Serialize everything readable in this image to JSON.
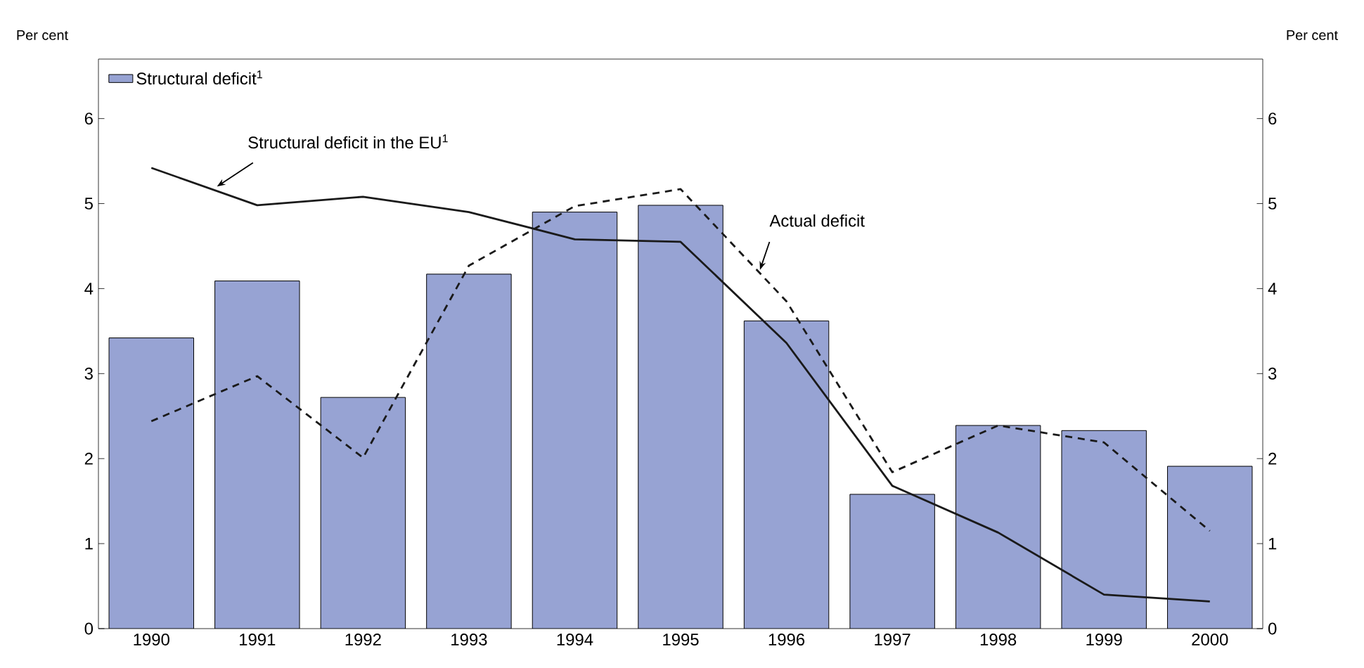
{
  "chart_data": {
    "type": "bar",
    "ylabel": "Per cent",
    "y2label": "Per cent",
    "categories": [
      "1990",
      "1991",
      "1992",
      "1993",
      "1994",
      "1995",
      "1996",
      "1997",
      "1998",
      "1999",
      "2000"
    ],
    "series": [
      {
        "name": "Structural deficit$^{1}$",
        "color": "#97a3d3",
        "values": [
          3.42,
          4.09,
          2.72,
          4.17,
          4.9,
          4.98,
          3.62,
          1.58,
          2.39,
          2.33,
          1.91
        ]
      },
      {
        "name": "Structural deficit in the EU$^{1}$",
        "type": "line",
        "color": "#1a1a1a",
        "line_style": "solid",
        "values": [
          5.42,
          4.98,
          5.08,
          4.9,
          4.58,
          4.55,
          3.36,
          1.68,
          1.13,
          0.4,
          0.32
        ]
      },
      {
        "name": "Actual deficit",
        "type": "line",
        "color": "#1a1a1a",
        "line_style": "dashed",
        "values": [
          2.44,
          2.97,
          2.01,
          4.27,
          4.97,
          5.17,
          3.85,
          1.84,
          2.39,
          2.19,
          1.15
        ]
      }
    ],
    "ylim": [
      0,
      6.7
    ],
    "yticks": [
      0,
      1,
      2,
      3,
      4,
      5,
      6
    ],
    "y2lim": [
      0,
      6.7
    ],
    "y2ticks": [
      0,
      1,
      2,
      3,
      4,
      5,
      6
    ],
    "legend": "top left",
    "grid": false,
    "marker": "none"
  }
}
